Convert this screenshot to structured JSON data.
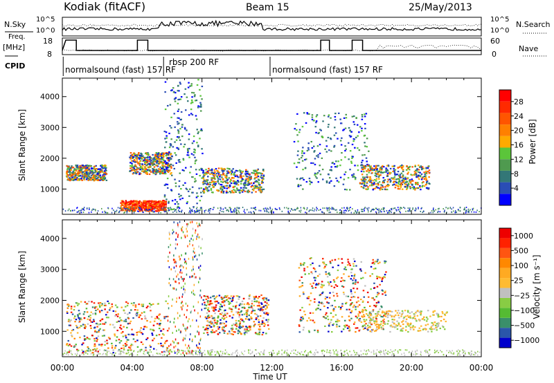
{
  "header": {
    "station": "Kodiak (fitACF)",
    "beam": "Beam 15",
    "date": "25/May/2013"
  },
  "strips": {
    "nsky_label": "N.Sky",
    "nsky_ticks": [
      "10^5",
      "10^0"
    ],
    "nsearch_label": "N.Search",
    "freq_label_1": "Freq.",
    "freq_label_2": "[MHz]",
    "freq_ticks": [
      "18",
      "8"
    ],
    "nave_label": "Nave",
    "nave_ticks": [
      "60",
      "0"
    ],
    "cpid_label": "CPID",
    "cpid_segments": [
      {
        "label": "normalsound (fast) 157 RF",
        "start_hour": 0.05,
        "end_hour": 5.8
      },
      {
        "label": "rbsp 200 RF",
        "start_hour": 5.8,
        "end_hour": 11.9
      },
      {
        "label": "normalsound (fast) 157 RF",
        "start_hour": 11.9,
        "end_hour": 24
      }
    ]
  },
  "chart_data": [
    {
      "type": "heatmap",
      "panel": "power",
      "ylabel": "Slant Range [km]",
      "y_ticks": [
        1000,
        2000,
        3000,
        4000
      ],
      "ylim": [
        180,
        4600
      ],
      "xlim": [
        0,
        24
      ],
      "colorbar_label": "Power [dB]",
      "colorbar_ticks": [
        "4",
        "8",
        "12",
        "16",
        "20",
        "24",
        "28"
      ],
      "colorbar_colors": [
        "#0000ff",
        "#2a4db5",
        "#337777",
        "#4f9a4f",
        "#5bc53a",
        "#ffaa00",
        "#ff8000",
        "#ff5500",
        "#ff2a00",
        "#ff0000"
      ],
      "echo_regions": [
        {
          "hours": [
            0.2,
            2.5
          ],
          "range_km": [
            1300,
            1800
          ],
          "level": "mixed"
        },
        {
          "hours": [
            3.3,
            5.9
          ],
          "range_km": [
            300,
            650
          ],
          "level": "high"
        },
        {
          "hours": [
            3.8,
            6.2
          ],
          "range_km": [
            1500,
            2200
          ],
          "level": "mixed"
        },
        {
          "hours": [
            5.8,
            8.0
          ],
          "range_km": [
            300,
            4600
          ],
          "level": "low"
        },
        {
          "hours": [
            8.0,
            11.5
          ],
          "range_km": [
            900,
            1700
          ],
          "level": "mixed"
        },
        {
          "hours": [
            13.2,
            17.5
          ],
          "range_km": [
            1000,
            3500
          ],
          "level": "low"
        },
        {
          "hours": [
            17.0,
            21.0
          ],
          "range_km": [
            1000,
            1800
          ],
          "level": "mixed"
        }
      ]
    },
    {
      "type": "heatmap",
      "panel": "velocity",
      "ylabel": "Slant Range [km]",
      "y_ticks": [
        1000,
        2000,
        3000,
        4000
      ],
      "ylim": [
        180,
        4600
      ],
      "xlim": [
        0,
        24
      ],
      "x_ticks": [
        "00:00",
        "04:00",
        "08:00",
        "12:00",
        "16:00",
        "20:00",
        "00:00"
      ],
      "xlabel": "Time UT",
      "colorbar_label": "Velocity [m s⁻¹]",
      "colorbar_ticks": [
        "1000",
        "500",
        "100",
        "25",
        "−25",
        "−100",
        "−500",
        "−1000"
      ],
      "colorbar_colors": [
        "#0000cc",
        "#2a56aa",
        "#3a8f6a",
        "#55bb33",
        "#88cc44",
        "#c0c0c0",
        "#ffbb33",
        "#ffaa22",
        "#ff8800",
        "#ff5511",
        "#ff2200",
        "#ee0000"
      ],
      "echo_regions": [
        {
          "hours": [
            0.2,
            6.0
          ],
          "range_km": [
            300,
            2000
          ],
          "level": "mixed"
        },
        {
          "hours": [
            6.0,
            8.0
          ],
          "range_km": [
            300,
            4600
          ],
          "level": "noise"
        },
        {
          "hours": [
            8.0,
            11.8
          ],
          "range_km": [
            900,
            2200
          ],
          "level": "mixed"
        },
        {
          "hours": [
            13.5,
            18.5
          ],
          "range_km": [
            1000,
            3400
          ],
          "level": "mixed"
        },
        {
          "hours": [
            17.0,
            22.0
          ],
          "range_km": [
            1000,
            1700
          ],
          "level": "low"
        }
      ]
    }
  ]
}
